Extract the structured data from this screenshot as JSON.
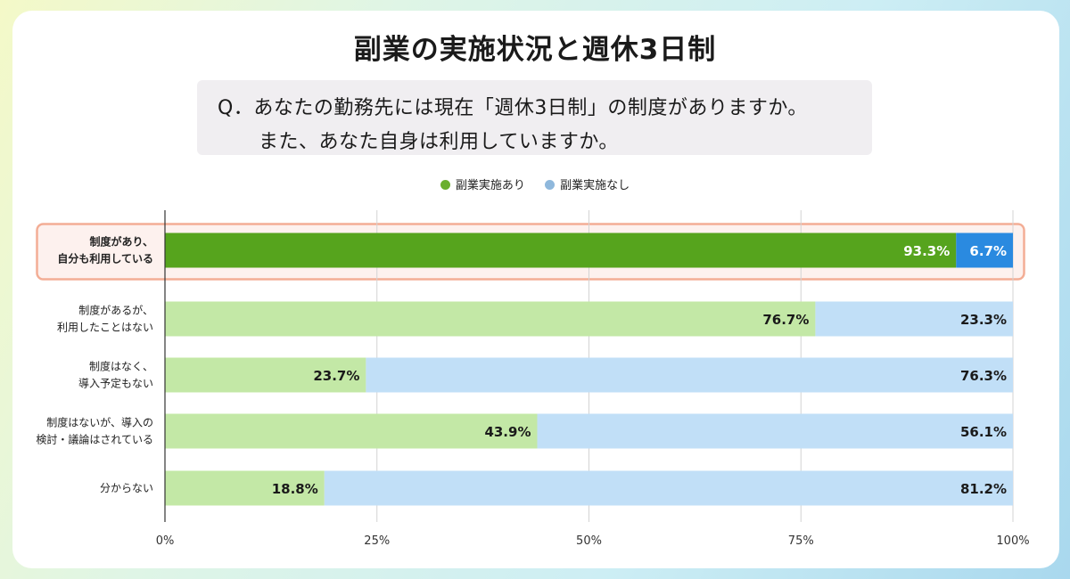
{
  "title": "副業の実施状況と週休3日制",
  "question": {
    "line1": "Q．あなたの勤務先には現在「週休3日制」の制度がありますか。",
    "line2": "また、あなた自身は利用していますか。"
  },
  "colors": {
    "yes_highlight": "#56a41d",
    "no_highlight": "#2a8ae0",
    "yes": "#c3e8a6",
    "no": "#c1dff7",
    "highlight_border": "#f3ad95",
    "highlight_bg": "#fdf1ee",
    "legend_yes": "#6aaf2e",
    "legend_no": "#8fb8dc"
  },
  "chart_data": {
    "type": "bar",
    "orientation": "horizontal",
    "stacked": true,
    "categories": [
      [
        "制度があり、",
        "自分も利用している"
      ],
      [
        "制度があるが、",
        "利用したことはない"
      ],
      [
        "制度はなく、",
        "導入予定もない"
      ],
      [
        "制度はないが、導入の",
        "検討・議論はされている"
      ],
      [
        "分からない"
      ]
    ],
    "series": [
      {
        "name": "副業実施あり",
        "values": [
          93.3,
          76.7,
          23.7,
          43.9,
          18.8
        ]
      },
      {
        "name": "副業実施なし",
        "values": [
          6.7,
          23.3,
          76.3,
          56.1,
          81.2
        ]
      }
    ],
    "value_labels": [
      [
        "93.3%",
        "76.7%",
        "23.7%",
        "43.9%",
        "18.8%"
      ],
      [
        "6.7%",
        "23.3%",
        "76.3%",
        "56.1%",
        "81.2%"
      ]
    ],
    "xlim": [
      0,
      100
    ],
    "x_ticks": [
      "0%",
      "25%",
      "50%",
      "75%",
      "100%"
    ],
    "grid": true,
    "legend_position": "top",
    "highlighted_category_index": 0
  }
}
